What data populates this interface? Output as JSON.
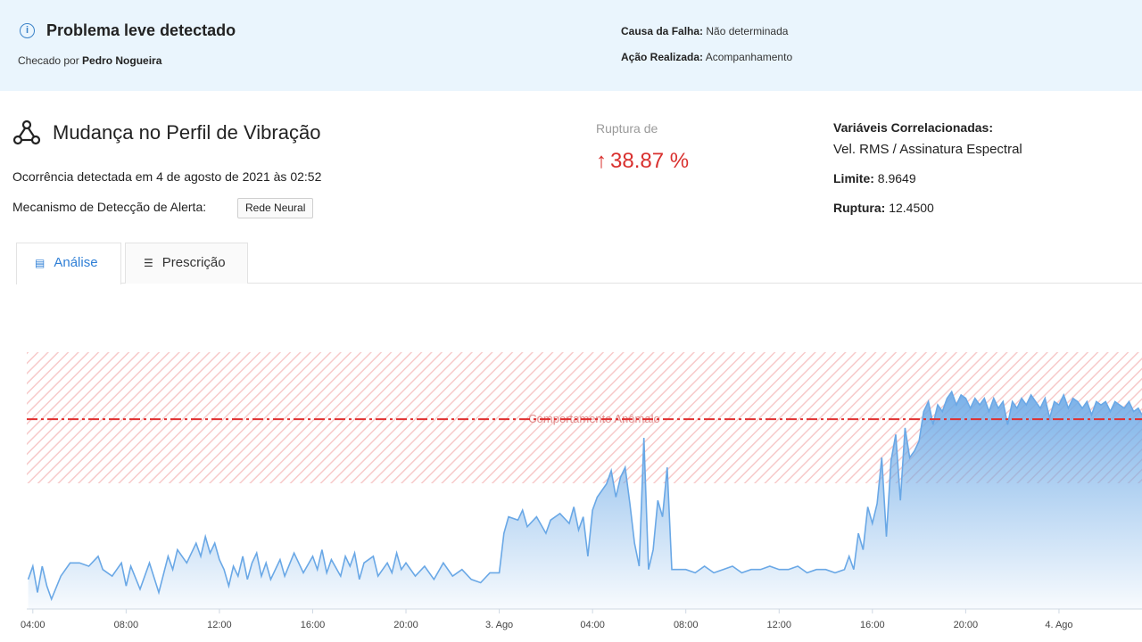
{
  "banner": {
    "title": "Problema leve detectado",
    "checked_prefix": "Checado por ",
    "checked_by": "Pedro Nogueira",
    "cause_label": "Causa da Falha:",
    "cause_value": " Não determinada",
    "action_label": "Ação Realizada:",
    "action_value": " Acompanhamento"
  },
  "event": {
    "title": "Mudança no Perfil de Vibração",
    "occurrence": "Ocorrência detectada em 4 de agosto de 2021 às 02:52",
    "mechanism_label": "Mecanismo de Detecção de Alerta:",
    "mechanism_value": "Rede Neural"
  },
  "rupture": {
    "label": "Ruptura de",
    "value": "38.87 %"
  },
  "correlated": {
    "title": "Variáveis Correlacionadas:",
    "variables": "Vel. RMS / Assinatura Espectral",
    "limit_label": "Limite:",
    "limit_value": " 8.9649",
    "rupture_label": "Ruptura:",
    "rupture_value": " 12.4500"
  },
  "tabs": [
    {
      "label": "Análise",
      "icon": "chart-icon",
      "active": true
    },
    {
      "label": "Prescrição",
      "icon": "list-icon",
      "active": false
    }
  ],
  "colors": {
    "accent": "#2f7fd6",
    "alert": "#d9302e",
    "series": "#6aa8e6",
    "threshold": "#e03030"
  },
  "chart_data": {
    "type": "area",
    "anomaly_label": "Comportamento Anômalo",
    "threshold": 8.9649,
    "ylim": [
      3.2,
      11
    ],
    "xlim": [
      -0.13,
      23.78
    ],
    "x_tick_labels": [
      "04:00",
      "08:00",
      "12:00",
      "16:00",
      "20:00",
      "3. Ago",
      "04:00",
      "08:00",
      "12:00",
      "16:00",
      "20:00",
      "4. Ago"
    ],
    "x_tick_positions": [
      0,
      2,
      4,
      6,
      8,
      10,
      12,
      14,
      16,
      18,
      20,
      22
    ],
    "series": [
      {
        "values": [
          [
            -0.1,
            4.1
          ],
          [
            0.0,
            4.5
          ],
          [
            0.1,
            3.7
          ],
          [
            0.2,
            4.5
          ],
          [
            0.3,
            3.9
          ],
          [
            0.4,
            3.5
          ],
          [
            0.6,
            4.2
          ],
          [
            0.8,
            4.6
          ],
          [
            1.0,
            4.6
          ],
          [
            1.2,
            4.5
          ],
          [
            1.4,
            4.8
          ],
          [
            1.5,
            4.4
          ],
          [
            1.7,
            4.2
          ],
          [
            1.9,
            4.6
          ],
          [
            2.0,
            3.9
          ],
          [
            2.1,
            4.5
          ],
          [
            2.3,
            3.8
          ],
          [
            2.5,
            4.6
          ],
          [
            2.7,
            3.7
          ],
          [
            2.9,
            4.8
          ],
          [
            3.0,
            4.4
          ],
          [
            3.1,
            5.0
          ],
          [
            3.3,
            4.6
          ],
          [
            3.5,
            5.2
          ],
          [
            3.6,
            4.8
          ],
          [
            3.7,
            5.4
          ],
          [
            3.8,
            4.9
          ],
          [
            3.9,
            5.2
          ],
          [
            4.0,
            4.7
          ],
          [
            4.1,
            4.4
          ],
          [
            4.2,
            3.9
          ],
          [
            4.3,
            4.5
          ],
          [
            4.4,
            4.2
          ],
          [
            4.5,
            4.8
          ],
          [
            4.6,
            4.1
          ],
          [
            4.7,
            4.6
          ],
          [
            4.8,
            4.9
          ],
          [
            4.9,
            4.2
          ],
          [
            5.0,
            4.6
          ],
          [
            5.1,
            4.1
          ],
          [
            5.3,
            4.7
          ],
          [
            5.4,
            4.2
          ],
          [
            5.6,
            4.9
          ],
          [
            5.8,
            4.3
          ],
          [
            6.0,
            4.8
          ],
          [
            6.1,
            4.4
          ],
          [
            6.2,
            5.0
          ],
          [
            6.3,
            4.3
          ],
          [
            6.4,
            4.7
          ],
          [
            6.6,
            4.2
          ],
          [
            6.7,
            4.8
          ],
          [
            6.8,
            4.5
          ],
          [
            6.9,
            4.9
          ],
          [
            7.0,
            4.1
          ],
          [
            7.1,
            4.6
          ],
          [
            7.3,
            4.8
          ],
          [
            7.4,
            4.2
          ],
          [
            7.6,
            4.6
          ],
          [
            7.7,
            4.3
          ],
          [
            7.8,
            4.9
          ],
          [
            7.9,
            4.4
          ],
          [
            8.0,
            4.6
          ],
          [
            8.2,
            4.2
          ],
          [
            8.4,
            4.5
          ],
          [
            8.6,
            4.1
          ],
          [
            8.8,
            4.6
          ],
          [
            9.0,
            4.2
          ],
          [
            9.2,
            4.4
          ],
          [
            9.4,
            4.1
          ],
          [
            9.6,
            4.0
          ],
          [
            9.8,
            4.3
          ],
          [
            10.0,
            4.3
          ],
          [
            10.1,
            5.5
          ],
          [
            10.2,
            6.0
          ],
          [
            10.4,
            5.9
          ],
          [
            10.5,
            6.2
          ],
          [
            10.6,
            5.7
          ],
          [
            10.8,
            6.0
          ],
          [
            11.0,
            5.5
          ],
          [
            11.1,
            5.9
          ],
          [
            11.3,
            6.1
          ],
          [
            11.5,
            5.8
          ],
          [
            11.6,
            6.3
          ],
          [
            11.7,
            5.6
          ],
          [
            11.8,
            6.0
          ],
          [
            11.9,
            4.8
          ],
          [
            12.0,
            6.2
          ],
          [
            12.1,
            6.6
          ],
          [
            12.3,
            7.0
          ],
          [
            12.4,
            7.4
          ],
          [
            12.5,
            6.6
          ],
          [
            12.6,
            7.2
          ],
          [
            12.7,
            7.5
          ],
          [
            12.8,
            6.4
          ],
          [
            12.9,
            5.2
          ],
          [
            13.0,
            4.5
          ],
          [
            13.1,
            8.4
          ],
          [
            13.2,
            4.4
          ],
          [
            13.3,
            5.0
          ],
          [
            13.4,
            6.5
          ],
          [
            13.5,
            6.0
          ],
          [
            13.6,
            7.5
          ],
          [
            13.7,
            4.4
          ],
          [
            13.8,
            4.4
          ],
          [
            14.0,
            4.4
          ],
          [
            14.2,
            4.3
          ],
          [
            14.4,
            4.5
          ],
          [
            14.6,
            4.3
          ],
          [
            14.8,
            4.4
          ],
          [
            15.0,
            4.5
          ],
          [
            15.2,
            4.3
          ],
          [
            15.4,
            4.4
          ],
          [
            15.6,
            4.4
          ],
          [
            15.8,
            4.5
          ],
          [
            16.0,
            4.4
          ],
          [
            16.2,
            4.4
          ],
          [
            16.4,
            4.5
          ],
          [
            16.6,
            4.3
          ],
          [
            16.8,
            4.4
          ],
          [
            17.0,
            4.4
          ],
          [
            17.2,
            4.3
          ],
          [
            17.4,
            4.4
          ],
          [
            17.5,
            4.8
          ],
          [
            17.6,
            4.4
          ],
          [
            17.7,
            5.5
          ],
          [
            17.8,
            5.0
          ],
          [
            17.9,
            6.3
          ],
          [
            18.0,
            5.8
          ],
          [
            18.1,
            6.4
          ],
          [
            18.2,
            7.8
          ],
          [
            18.3,
            5.4
          ],
          [
            18.4,
            7.7
          ],
          [
            18.5,
            8.5
          ],
          [
            18.6,
            6.5
          ],
          [
            18.7,
            8.7
          ],
          [
            18.8,
            7.8
          ],
          [
            18.9,
            8.0
          ],
          [
            19.0,
            8.3
          ],
          [
            19.1,
            9.2
          ],
          [
            19.2,
            9.5
          ],
          [
            19.3,
            8.8
          ],
          [
            19.4,
            9.4
          ],
          [
            19.5,
            9.2
          ],
          [
            19.6,
            9.6
          ],
          [
            19.7,
            9.8
          ],
          [
            19.8,
            9.4
          ],
          [
            19.9,
            9.7
          ],
          [
            20.0,
            9.6
          ],
          [
            20.1,
            9.3
          ],
          [
            20.2,
            9.6
          ],
          [
            20.3,
            9.4
          ],
          [
            20.4,
            9.6
          ],
          [
            20.5,
            9.2
          ],
          [
            20.6,
            9.6
          ],
          [
            20.7,
            9.3
          ],
          [
            20.8,
            9.5
          ],
          [
            20.9,
            8.8
          ],
          [
            21.0,
            9.5
          ],
          [
            21.1,
            9.3
          ],
          [
            21.2,
            9.6
          ],
          [
            21.3,
            9.4
          ],
          [
            21.4,
            9.7
          ],
          [
            21.5,
            9.5
          ],
          [
            21.6,
            9.3
          ],
          [
            21.7,
            9.6
          ],
          [
            21.8,
            9.0
          ],
          [
            21.9,
            9.5
          ],
          [
            22.0,
            9.4
          ],
          [
            22.1,
            9.7
          ],
          [
            22.2,
            9.3
          ],
          [
            22.3,
            9.6
          ],
          [
            22.4,
            9.5
          ],
          [
            22.5,
            9.3
          ],
          [
            22.6,
            9.5
          ],
          [
            22.7,
            9.1
          ],
          [
            22.8,
            9.5
          ],
          [
            22.9,
            9.4
          ],
          [
            23.0,
            9.5
          ],
          [
            23.1,
            9.2
          ],
          [
            23.2,
            9.5
          ],
          [
            23.3,
            9.4
          ],
          [
            23.4,
            9.3
          ],
          [
            23.5,
            9.5
          ],
          [
            23.6,
            9.2
          ],
          [
            23.7,
            9.3
          ],
          [
            23.78,
            9.1
          ]
        ]
      }
    ]
  }
}
